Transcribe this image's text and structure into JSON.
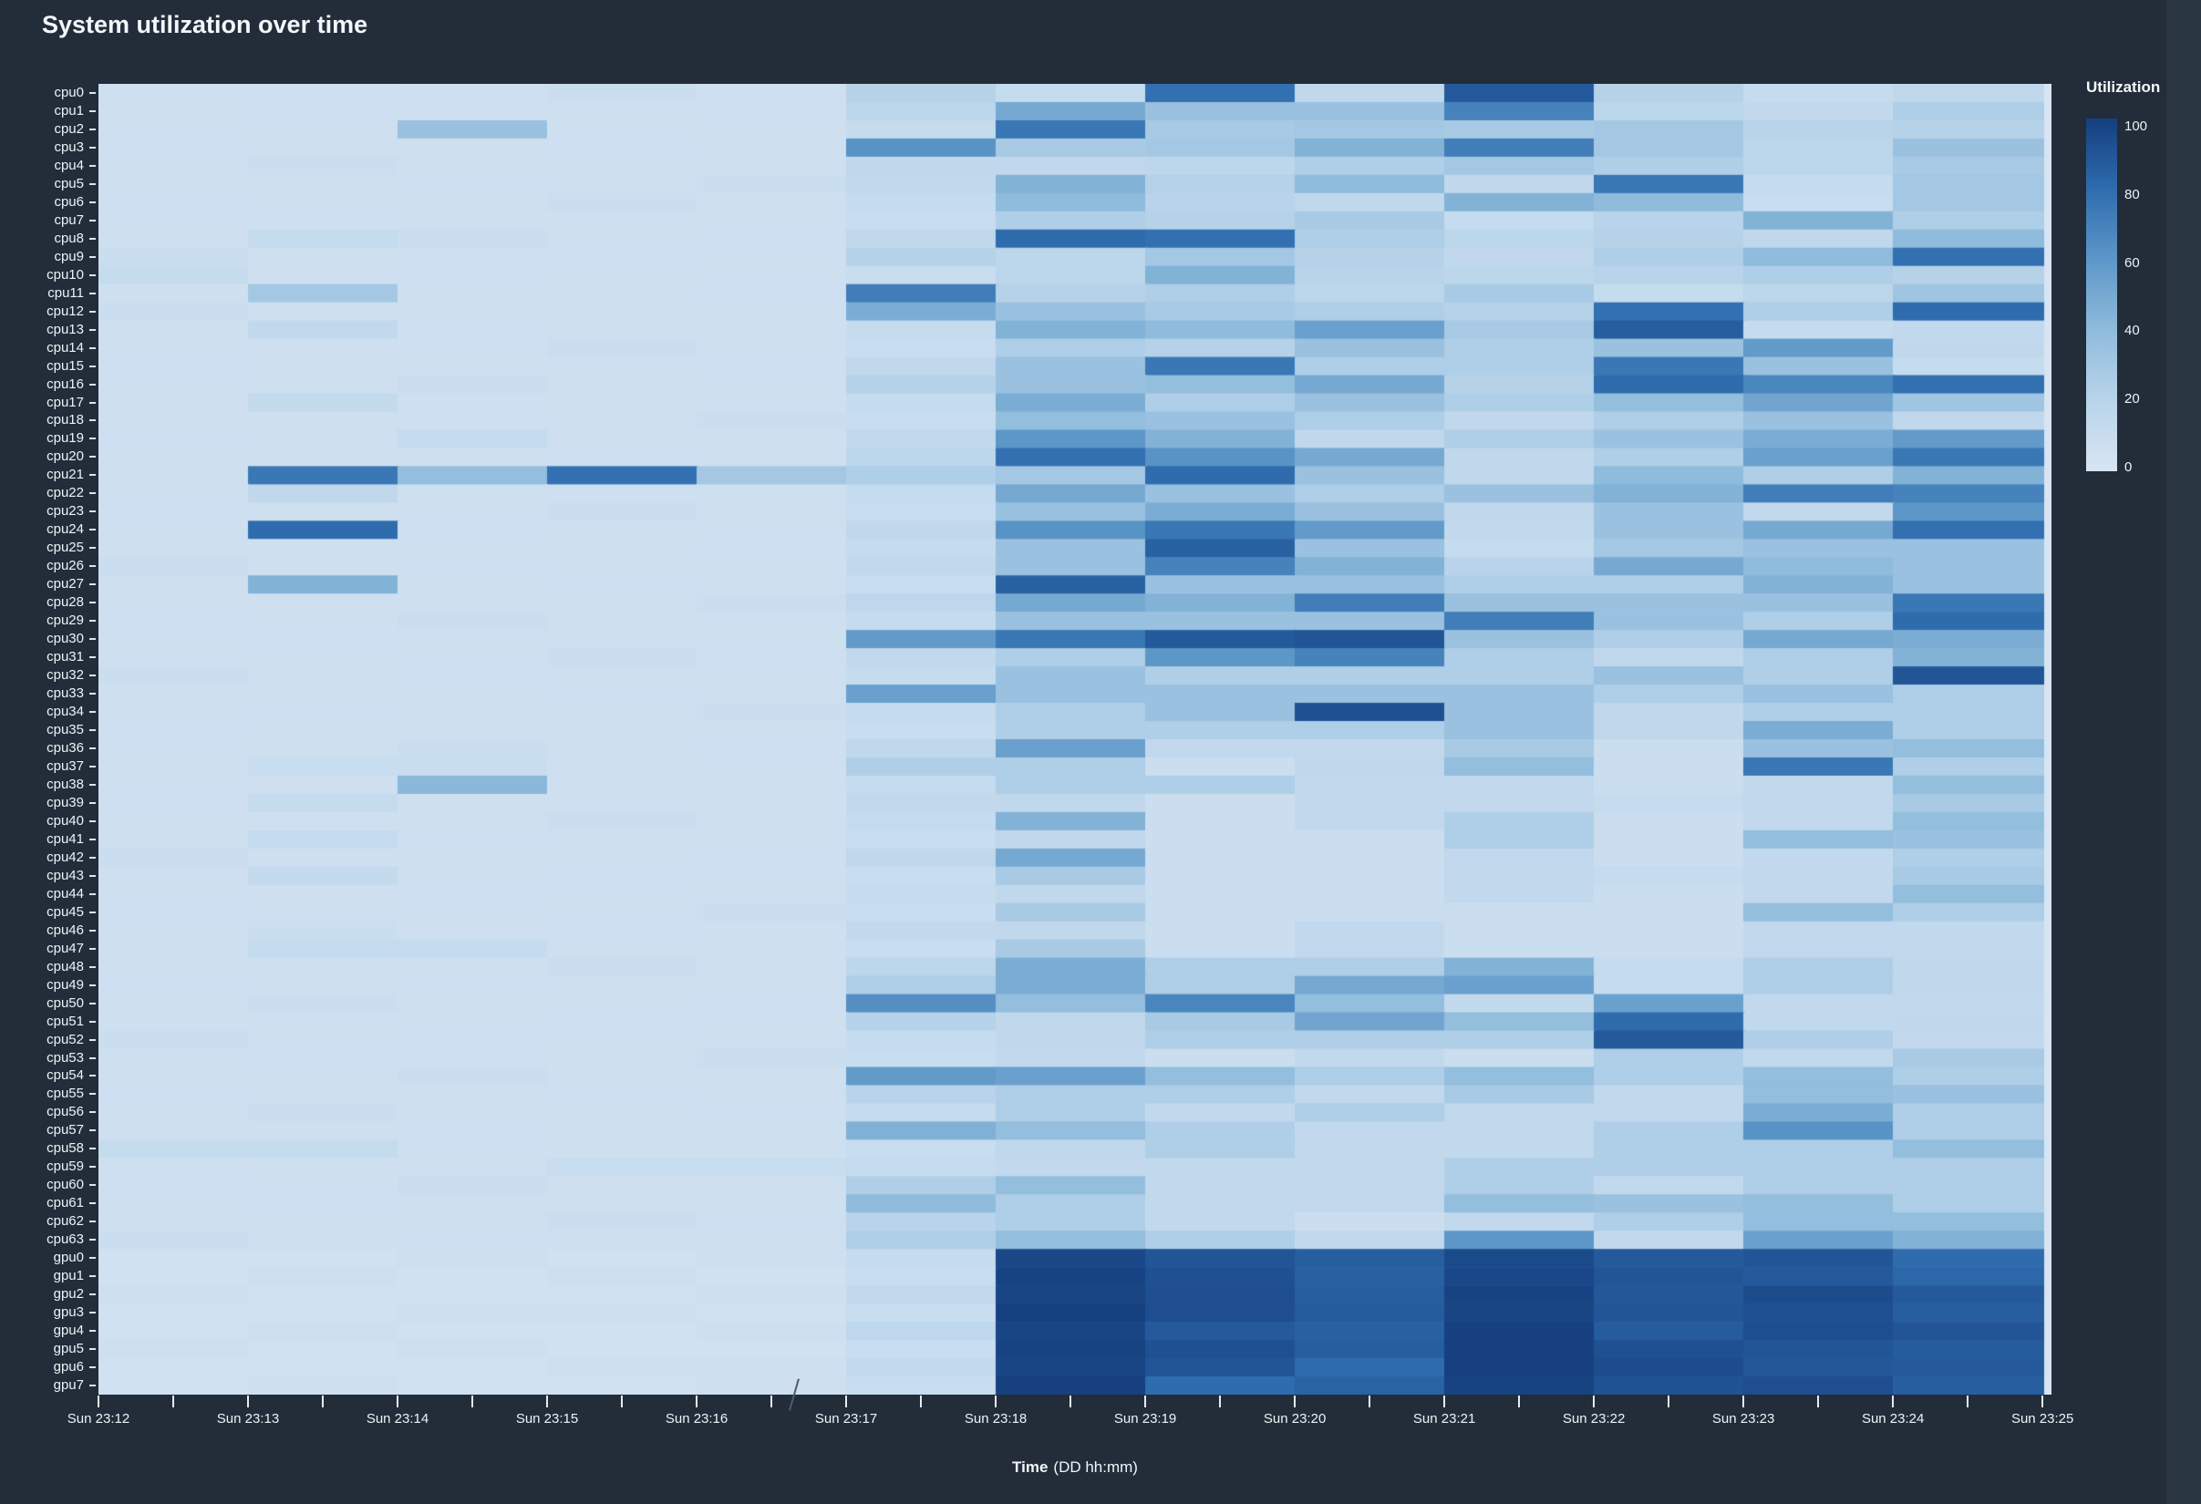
{
  "title": "System utilization over time",
  "colors": {
    "paper": "#222d39",
    "right_strip": "#2b3643",
    "tick": "#e6ebf0",
    "label": "#eef2f6"
  },
  "axis": {
    "x_title": "Time",
    "x_units": "(DD hh:mm)"
  },
  "colorbar": {
    "title": "Utilization",
    "ticks": [
      100,
      80,
      60,
      40,
      20,
      0
    ],
    "min": 0,
    "max": 100
  },
  "chart_data": {
    "type": "heatmap",
    "title": "System utilization over time",
    "xlabel": "Time",
    "xlabel_units": "(DD hh:mm)",
    "legend_title": "Utilization",
    "zlim": [
      0,
      100
    ],
    "grid": false,
    "x": [
      "Sun 23:12",
      "Sun 23:13",
      "Sun 23:14",
      "Sun 23:15",
      "Sun 23:16",
      "Sun 23:17",
      "Sun 23:18",
      "Sun 23:19",
      "Sun 23:20",
      "Sun 23:21",
      "Sun 23:22",
      "Sun 23:23",
      "Sun 23:24",
      "Sun 23:25"
    ],
    "columns_minutes": [
      "23:12",
      "23:13",
      "23:14",
      "23:15",
      "23:16",
      "23:17",
      "23:18",
      "23:19",
      "23:20",
      "23:21",
      "23:22",
      "23:23",
      "23:24"
    ],
    "y": [
      "cpu0",
      "cpu1",
      "cpu2",
      "cpu3",
      "cpu4",
      "cpu5",
      "cpu6",
      "cpu7",
      "cpu8",
      "cpu9",
      "cpu10",
      "cpu11",
      "cpu12",
      "cpu13",
      "cpu14",
      "cpu15",
      "cpu16",
      "cpu17",
      "cpu18",
      "cpu19",
      "cpu20",
      "cpu21",
      "cpu22",
      "cpu23",
      "cpu24",
      "cpu25",
      "cpu26",
      "cpu27",
      "cpu28",
      "cpu29",
      "cpu30",
      "cpu31",
      "cpu32",
      "cpu33",
      "cpu34",
      "cpu35",
      "cpu36",
      "cpu37",
      "cpu38",
      "cpu39",
      "cpu40",
      "cpu41",
      "cpu42",
      "cpu43",
      "cpu44",
      "cpu45",
      "cpu46",
      "cpu47",
      "cpu48",
      "cpu49",
      "cpu50",
      "cpu51",
      "cpu52",
      "cpu53",
      "cpu54",
      "cpu55",
      "cpu56",
      "cpu57",
      "cpu58",
      "cpu59",
      "cpu60",
      "cpu61",
      "cpu62",
      "cpu63",
      "gpu0",
      "gpu1",
      "gpu2",
      "gpu3",
      "gpu4",
      "gpu5",
      "gpu6",
      "gpu7"
    ],
    "colorscale": [
      [
        0.0,
        "#d7e5f3"
      ],
      [
        0.2,
        "#b9d4ea"
      ],
      [
        0.4,
        "#8fbbdc"
      ],
      [
        0.6,
        "#5d97c8"
      ],
      [
        0.8,
        "#2e6cae"
      ],
      [
        1.0,
        "#153e7e"
      ]
    ],
    "values": [
      [
        6,
        6,
        7,
        8,
        6,
        22,
        12,
        78,
        15,
        88,
        22,
        12,
        15
      ],
      [
        6,
        7,
        6,
        6,
        7,
        18,
        50,
        35,
        35,
        70,
        18,
        14,
        25
      ],
      [
        6,
        6,
        35,
        6,
        6,
        12,
        75,
        28,
        30,
        28,
        30,
        20,
        22
      ],
      [
        7,
        6,
        6,
        7,
        6,
        62,
        28,
        30,
        45,
        72,
        30,
        18,
        35
      ],
      [
        6,
        8,
        6,
        6,
        6,
        15,
        15,
        18,
        25,
        30,
        25,
        18,
        28
      ],
      [
        6,
        6,
        7,
        6,
        8,
        14,
        45,
        22,
        40,
        15,
        75,
        12,
        30
      ],
      [
        7,
        6,
        6,
        8,
        6,
        12,
        40,
        20,
        15,
        45,
        40,
        10,
        30
      ],
      [
        6,
        7,
        6,
        6,
        6,
        10,
        25,
        22,
        28,
        12,
        20,
        45,
        25
      ],
      [
        6,
        12,
        8,
        6,
        7,
        15,
        80,
        78,
        25,
        18,
        22,
        15,
        40
      ],
      [
        8,
        6,
        6,
        7,
        6,
        22,
        18,
        30,
        22,
        15,
        25,
        40,
        78
      ],
      [
        12,
        6,
        7,
        6,
        6,
        10,
        18,
        45,
        20,
        18,
        20,
        25,
        22
      ],
      [
        6,
        30,
        6,
        6,
        7,
        72,
        22,
        25,
        18,
        28,
        12,
        18,
        32
      ],
      [
        8,
        6,
        6,
        6,
        6,
        48,
        35,
        28,
        25,
        22,
        78,
        25,
        80
      ],
      [
        6,
        14,
        7,
        6,
        6,
        12,
        45,
        40,
        55,
        28,
        86,
        12,
        14
      ],
      [
        6,
        6,
        6,
        8,
        6,
        10,
        25,
        22,
        35,
        25,
        35,
        58,
        15
      ],
      [
        7,
        6,
        6,
        6,
        7,
        15,
        35,
        75,
        25,
        25,
        75,
        35,
        12
      ],
      [
        6,
        6,
        8,
        6,
        6,
        22,
        35,
        38,
        50,
        22,
        80,
        68,
        78
      ],
      [
        6,
        13,
        6,
        6,
        6,
        12,
        48,
        25,
        35,
        25,
        38,
        52,
        32
      ],
      [
        6,
        6,
        7,
        6,
        8,
        10,
        38,
        35,
        25,
        15,
        25,
        35,
        15
      ],
      [
        7,
        6,
        12,
        6,
        6,
        14,
        60,
        45,
        15,
        25,
        35,
        48,
        58
      ],
      [
        6,
        6,
        6,
        7,
        6,
        18,
        78,
        62,
        50,
        15,
        25,
        55,
        75
      ],
      [
        6,
        75,
        38,
        78,
        30,
        25,
        30,
        80,
        35,
        15,
        40,
        25,
        45
      ],
      [
        6,
        15,
        6,
        6,
        6,
        12,
        50,
        35,
        25,
        35,
        45,
        72,
        70
      ],
      [
        7,
        6,
        6,
        8,
        6,
        10,
        35,
        48,
        35,
        15,
        35,
        14,
        60
      ],
      [
        6,
        80,
        7,
        6,
        6,
        15,
        62,
        75,
        58,
        14,
        35,
        50,
        78
      ],
      [
        6,
        6,
        6,
        6,
        7,
        12,
        35,
        85,
        35,
        12,
        30,
        35,
        35
      ],
      [
        8,
        6,
        7,
        6,
        6,
        14,
        35,
        70,
        45,
        20,
        50,
        40,
        35
      ],
      [
        6,
        45,
        6,
        7,
        6,
        10,
        85,
        35,
        35,
        25,
        25,
        45,
        35
      ],
      [
        6,
        6,
        6,
        6,
        8,
        16,
        50,
        45,
        72,
        35,
        35,
        35,
        75
      ],
      [
        7,
        6,
        8,
        6,
        6,
        12,
        35,
        35,
        35,
        72,
        35,
        25,
        80
      ],
      [
        6,
        7,
        6,
        6,
        6,
        58,
        75,
        88,
        90,
        35,
        25,
        50,
        48
      ],
      [
        6,
        6,
        6,
        8,
        7,
        14,
        25,
        60,
        70,
        25,
        15,
        25,
        45
      ],
      [
        8,
        6,
        7,
        6,
        6,
        12,
        35,
        25,
        25,
        25,
        35,
        25,
        90
      ],
      [
        6,
        6,
        6,
        7,
        6,
        55,
        35,
        35,
        35,
        35,
        25,
        35,
        25
      ],
      [
        6,
        7,
        6,
        6,
        8,
        12,
        25,
        35,
        92,
        35,
        15,
        25,
        25
      ],
      [
        7,
        6,
        6,
        6,
        6,
        10,
        25,
        25,
        25,
        35,
        15,
        48,
        25
      ],
      [
        6,
        6,
        8,
        6,
        7,
        15,
        55,
        14,
        14,
        28,
        8,
        35,
        38
      ],
      [
        6,
        10,
        10,
        6,
        6,
        25,
        25,
        8,
        15,
        38,
        8,
        75,
        25
      ],
      [
        6,
        6,
        42,
        6,
        6,
        12,
        25,
        25,
        14,
        14,
        8,
        14,
        38
      ],
      [
        7,
        12,
        6,
        6,
        6,
        14,
        15,
        8,
        14,
        14,
        12,
        14,
        28
      ],
      [
        6,
        6,
        6,
        8,
        6,
        12,
        45,
        8,
        14,
        25,
        8,
        14,
        38
      ],
      [
        6,
        12,
        7,
        6,
        6,
        10,
        15,
        8,
        8,
        25,
        8,
        38,
        35
      ],
      [
        8,
        6,
        6,
        6,
        7,
        15,
        50,
        8,
        8,
        14,
        8,
        14,
        25
      ],
      [
        6,
        13,
        6,
        7,
        6,
        10,
        28,
        8,
        8,
        14,
        12,
        14,
        28
      ],
      [
        6,
        6,
        7,
        6,
        6,
        12,
        15,
        8,
        8,
        14,
        8,
        14,
        38
      ],
      [
        7,
        6,
        6,
        6,
        8,
        10,
        28,
        8,
        8,
        8,
        8,
        38,
        25
      ],
      [
        6,
        8,
        6,
        7,
        6,
        14,
        15,
        8,
        14,
        8,
        8,
        14,
        14
      ],
      [
        6,
        12,
        12,
        6,
        6,
        10,
        28,
        8,
        14,
        8,
        8,
        14,
        14
      ],
      [
        6,
        6,
        6,
        8,
        6,
        18,
        48,
        25,
        25,
        45,
        12,
        25,
        15
      ],
      [
        7,
        6,
        7,
        6,
        6,
        25,
        48,
        25,
        50,
        55,
        12,
        25,
        15
      ],
      [
        6,
        8,
        6,
        6,
        7,
        64,
        38,
        68,
        38,
        14,
        55,
        14,
        14
      ],
      [
        6,
        6,
        6,
        7,
        6,
        22,
        15,
        28,
        52,
        38,
        80,
        14,
        15
      ],
      [
        8,
        6,
        7,
        6,
        6,
        12,
        15,
        25,
        25,
        25,
        88,
        25,
        14
      ],
      [
        6,
        7,
        6,
        6,
        8,
        10,
        14,
        8,
        14,
        8,
        25,
        14,
        28
      ],
      [
        6,
        6,
        8,
        6,
        6,
        58,
        55,
        38,
        25,
        38,
        25,
        38,
        25
      ],
      [
        7,
        6,
        6,
        7,
        6,
        20,
        25,
        25,
        14,
        28,
        14,
        38,
        35
      ],
      [
        6,
        8,
        6,
        6,
        7,
        12,
        25,
        14,
        25,
        14,
        14,
        48,
        25
      ],
      [
        6,
        6,
        7,
        6,
        6,
        46,
        38,
        25,
        14,
        14,
        25,
        62,
        25
      ],
      [
        12,
        12,
        6,
        6,
        6,
        10,
        15,
        25,
        14,
        14,
        25,
        25,
        38
      ],
      [
        6,
        6,
        6,
        10,
        10,
        12,
        14,
        14,
        14,
        25,
        25,
        25,
        25
      ],
      [
        7,
        6,
        8,
        6,
        6,
        25,
        38,
        14,
        14,
        25,
        14,
        25,
        25
      ],
      [
        6,
        7,
        6,
        6,
        6,
        40,
        25,
        14,
        14,
        38,
        35,
        38,
        25
      ],
      [
        6,
        6,
        6,
        8,
        7,
        20,
        25,
        14,
        8,
        14,
        25,
        38,
        38
      ],
      [
        8,
        6,
        7,
        6,
        6,
        25,
        38,
        25,
        14,
        60,
        14,
        55,
        45
      ],
      [
        5,
        5,
        6,
        5,
        6,
        12,
        96,
        90,
        86,
        95,
        88,
        90,
        80
      ],
      [
        5,
        6,
        5,
        6,
        5,
        10,
        98,
        92,
        85,
        96,
        90,
        88,
        82
      ],
      [
        6,
        5,
        5,
        5,
        6,
        14,
        97,
        93,
        86,
        98,
        89,
        94,
        88
      ],
      [
        5,
        5,
        6,
        6,
        5,
        10,
        99,
        93,
        87,
        97,
        90,
        92,
        86
      ],
      [
        5,
        6,
        5,
        5,
        6,
        16,
        97,
        88,
        85,
        99,
        87,
        93,
        90
      ],
      [
        6,
        5,
        6,
        5,
        5,
        10,
        98,
        92,
        86,
        99,
        92,
        90,
        87
      ],
      [
        5,
        5,
        5,
        6,
        6,
        13,
        97,
        90,
        80,
        99,
        94,
        89,
        88
      ],
      [
        5,
        6,
        5,
        5,
        6,
        10,
        99,
        80,
        84,
        98,
        91,
        93,
        86
      ]
    ]
  }
}
